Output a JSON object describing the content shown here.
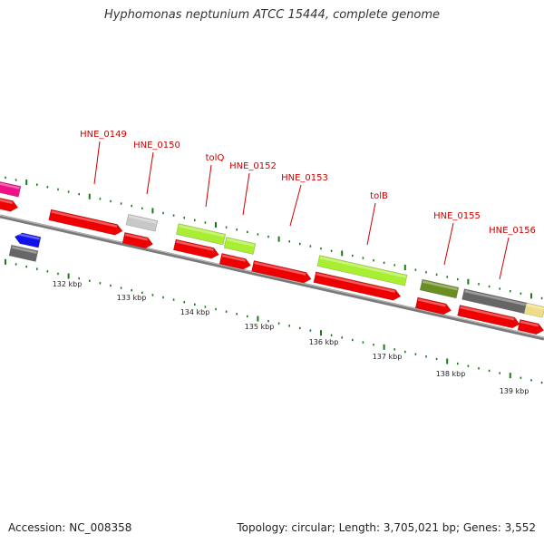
{
  "title": "Hyphomonas neptunium ATCC 15444, complete genome",
  "footer": {
    "accession": "Accession: NC_008358",
    "summary": "Topology: circular; Length: 3,705,021 bp; Genes: 3,552"
  },
  "colors": {
    "backbone": "#7a7a7a",
    "cds": "#ee0000",
    "tick": "#1a7a1a",
    "gene_label": "#cc0000",
    "kbp_label": "#222222"
  },
  "kbp_labels": [
    "132 kbp",
    "133 kbp",
    "134 kbp",
    "135 kbp",
    "136 kbp",
    "137 kbp",
    "138 kbp",
    "139 kbp"
  ],
  "gene_labels": [
    "HNE_0149",
    "HNE_0150",
    "tolQ",
    "HNE_0152",
    "HNE_0153",
    "tolB",
    "HNE_0155",
    "HNE_0156"
  ],
  "genes": [
    {
      "color": "#ee1188",
      "strand": "outer"
    },
    {
      "color": "#ee0000",
      "strand": "outer"
    },
    {
      "color": "#1111ee",
      "strand": "inner"
    },
    {
      "color": "#666666",
      "strand": "inner"
    },
    {
      "color": "#ee0000",
      "strand": "cds",
      "label": "HNE_0149"
    },
    {
      "color": "#c8c8c8",
      "strand": "outer",
      "label": "HNE_0150"
    },
    {
      "color": "#ee0000",
      "strand": "cds",
      "label": "HNE_0150"
    },
    {
      "color": "#aaee33",
      "strand": "outer",
      "label": "tolQ"
    },
    {
      "color": "#aaee33",
      "strand": "outer",
      "label": "HNE_0152"
    },
    {
      "color": "#ee0000",
      "strand": "cds",
      "label": "tolQ"
    },
    {
      "color": "#ee0000",
      "strand": "cds",
      "label": "HNE_0152"
    },
    {
      "color": "#ee0000",
      "strand": "cds",
      "label": "HNE_0153"
    },
    {
      "color": "#aaee33",
      "strand": "outer",
      "label": "tolB"
    },
    {
      "color": "#ee0000",
      "strand": "cds",
      "label": "tolB"
    },
    {
      "color": "#6b8e23",
      "strand": "outer",
      "label": "HNE_0155"
    },
    {
      "color": "#ee0000",
      "strand": "cds",
      "label": "HNE_0155"
    },
    {
      "color": "#666666",
      "strand": "outer",
      "label": "HNE_0156"
    },
    {
      "color": "#ee0000",
      "strand": "cds",
      "label": "HNE_0156"
    },
    {
      "color": "#eedd88",
      "strand": "outer"
    },
    {
      "color": "#ee0000",
      "strand": "cds"
    }
  ]
}
